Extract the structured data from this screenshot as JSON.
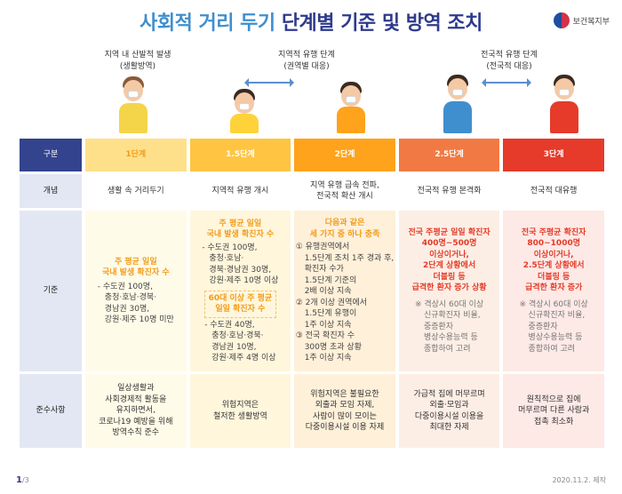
{
  "title": {
    "part1": "사회적 거리 두기",
    "part2": "단계별 기준 및 방역 조치"
  },
  "logo": {
    "text": "보건복지부"
  },
  "stage_labels": {
    "local": [
      "지역 내 산발적 발생",
      "(생활방역)"
    ],
    "regional": [
      "지역적 유행 단계",
      "(권역별 대응)"
    ],
    "national": [
      "전국적 유행 단계",
      "(전국적 대응)"
    ]
  },
  "table": {
    "header_label": "구분",
    "levels": [
      "1단계",
      "1.5단계",
      "2단계",
      "2.5단계",
      "3단계"
    ],
    "row_labels": {
      "concept": "개념",
      "criteria": "기준",
      "compliance": "준수사항"
    },
    "concept": [
      "생활 속 거리두기",
      "지역적 유행 개시",
      [
        "지역 유행 급속 전파,",
        "전국적 확산 개시"
      ],
      "전국적 유행 본격화",
      "전국적 대유행"
    ],
    "criteria": {
      "level1": {
        "headline": [
          "주 평균 일일",
          "국내 발생 확진자 수"
        ],
        "lines": [
          "- 수도권 100명,",
          "충청·호남·경북·",
          "경남권 30명,",
          "강원·제주 10명 미만"
        ]
      },
      "level15": {
        "headline": [
          "주 평균 일일",
          "국내 발생 확진자 수"
        ],
        "lines": [
          "- 수도권 100명,",
          "충청·호남·",
          "경북·경남권 30명,",
          "강원·제주 10명 이상"
        ],
        "headline2": [
          "60대 이상 주 평균",
          "일일 확진자 수"
        ],
        "lines2": [
          "- 수도권 40명,",
          "충청·호남·경북·",
          "경남권 10명,",
          "강원·제주 4명 이상"
        ]
      },
      "level2": {
        "headline": [
          "다음과 같은",
          "세 가지 중 하나 충족"
        ],
        "lines": [
          "① 유행권역에서",
          "1.5단계 조치 1주 경과 후,",
          "확진자 수가",
          "1.5단계 기준의",
          "2배 이상 지속",
          "② 2개 이상 권역에서",
          "1.5단계 유행이",
          "1주 이상 지속",
          "③ 전국 확진자 수",
          "300명 초과 상황",
          "1주 이상 지속"
        ]
      },
      "level25": {
        "headline": [
          "전국 주평균 일일 확진자",
          "400명~500명",
          "이상이거나,",
          "2단계 상황에서",
          "더블링 등",
          "급격한 환자 증가 상황"
        ],
        "lines": [
          "※ 격상시 60대 이상",
          "신규확진자 비율,",
          "중증환자",
          "병상수용능력 등",
          "종합하여 고려"
        ]
      },
      "level3": {
        "headline": [
          "전국 주평균 확진자",
          "800~1000명",
          "이상이거나,",
          "2.5단계 상황에서",
          "더블링 등",
          "급격한 환자 증가"
        ],
        "lines": [
          "※ 격상시 60대 이상",
          "신규확진자 비율,",
          "중증환자",
          "병상수용능력 등",
          "종합하여 고려"
        ]
      }
    },
    "compliance": [
      [
        "일상생활과",
        "사회경제적 활동을",
        "유지하면서,",
        "코로나19 예방을 위해",
        "방역수칙 준수"
      ],
      [
        "위험지역은",
        "철저한 생활방역"
      ],
      [
        "위험지역은 불필요한",
        "외출과 모임 자제,",
        "사람이 많이 모이는",
        "다중이용시설 이용 자제"
      ],
      [
        "가급적 집에 머무르며",
        "외출·모임과",
        "다중이용시설 이용을",
        "최대한 자제"
      ],
      [
        "원칙적으로 집에",
        "머무르며 다른 사람과",
        "접촉 최소화"
      ]
    ]
  },
  "footer": {
    "page": "1",
    "total": "/3",
    "date": "2020.11.2. 제작"
  },
  "colors": {
    "title_light": "#3f8fcf",
    "title_dark": "#2e3a8c",
    "level1": "#ffe08a",
    "level15": "#ffc542",
    "level2": "#ffa21c",
    "level25": "#f17a44",
    "level3": "#e63a2a",
    "row_label": "#33438e"
  }
}
